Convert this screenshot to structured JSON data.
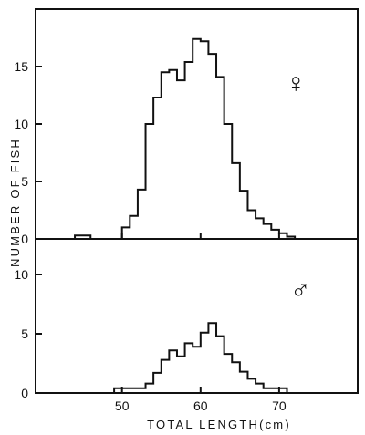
{
  "chart_data": {
    "type": "histogram",
    "xlabel": "TOTAL LENGTH(cm)",
    "ylabel": "NUMBER OF FISH",
    "shared_x_axis": true,
    "x_ticks": [
      50,
      60,
      70
    ],
    "xlim": [
      39,
      80
    ],
    "bin_width": 1,
    "grid": false,
    "panels": [
      {
        "symbol": "♀",
        "ylim": [
          0,
          20
        ],
        "y_ticks": [
          0,
          5,
          10,
          15
        ],
        "bins": [
          {
            "x0": 44,
            "x1": 46,
            "count": 0.3
          },
          {
            "x0": 50,
            "x1": 51,
            "count": 1
          },
          {
            "x0": 51,
            "x1": 52,
            "count": 2
          },
          {
            "x0": 52,
            "x1": 53,
            "count": 4.3
          },
          {
            "x0": 53,
            "x1": 54,
            "count": 10
          },
          {
            "x0": 54,
            "x1": 55,
            "count": 12.3
          },
          {
            "x0": 55,
            "x1": 56,
            "count": 14.5
          },
          {
            "x0": 56,
            "x1": 57,
            "count": 14.7
          },
          {
            "x0": 57,
            "x1": 58,
            "count": 13.8
          },
          {
            "x0": 58,
            "x1": 59,
            "count": 15.4
          },
          {
            "x0": 59,
            "x1": 60,
            "count": 17.4
          },
          {
            "x0": 60,
            "x1": 61,
            "count": 17.2
          },
          {
            "x0": 61,
            "x1": 62,
            "count": 16.1
          },
          {
            "x0": 62,
            "x1": 63,
            "count": 14.1
          },
          {
            "x0": 63,
            "x1": 64,
            "count": 10
          },
          {
            "x0": 64,
            "x1": 65,
            "count": 6.6
          },
          {
            "x0": 65,
            "x1": 66,
            "count": 4.2
          },
          {
            "x0": 66,
            "x1": 67,
            "count": 2.5
          },
          {
            "x0": 67,
            "x1": 68,
            "count": 1.8
          },
          {
            "x0": 68,
            "x1": 69,
            "count": 1.3
          },
          {
            "x0": 69,
            "x1": 70,
            "count": 0.8
          },
          {
            "x0": 70,
            "x1": 71,
            "count": 0.5
          },
          {
            "x0": 71,
            "x1": 72,
            "count": 0.2
          }
        ]
      },
      {
        "symbol": "♂",
        "ylim": [
          0,
          13
        ],
        "y_ticks": [
          0,
          5,
          10
        ],
        "bins": [
          {
            "x0": 49,
            "x1": 53,
            "count": 0.4
          },
          {
            "x0": 53,
            "x1": 54,
            "count": 0.8
          },
          {
            "x0": 54,
            "x1": 55,
            "count": 1.7
          },
          {
            "x0": 55,
            "x1": 56,
            "count": 2.8
          },
          {
            "x0": 56,
            "x1": 57,
            "count": 3.6
          },
          {
            "x0": 57,
            "x1": 58,
            "count": 3.1
          },
          {
            "x0": 58,
            "x1": 59,
            "count": 4.2
          },
          {
            "x0": 59,
            "x1": 60,
            "count": 3.9
          },
          {
            "x0": 60,
            "x1": 61,
            "count": 5.1
          },
          {
            "x0": 61,
            "x1": 62,
            "count": 5.9
          },
          {
            "x0": 62,
            "x1": 63,
            "count": 4.8
          },
          {
            "x0": 63,
            "x1": 64,
            "count": 3.3
          },
          {
            "x0": 64,
            "x1": 65,
            "count": 2.6
          },
          {
            "x0": 65,
            "x1": 66,
            "count": 1.8
          },
          {
            "x0": 66,
            "x1": 67,
            "count": 1.2
          },
          {
            "x0": 67,
            "x1": 68,
            "count": 0.8
          },
          {
            "x0": 68,
            "x1": 71,
            "count": 0.4
          }
        ]
      }
    ]
  }
}
